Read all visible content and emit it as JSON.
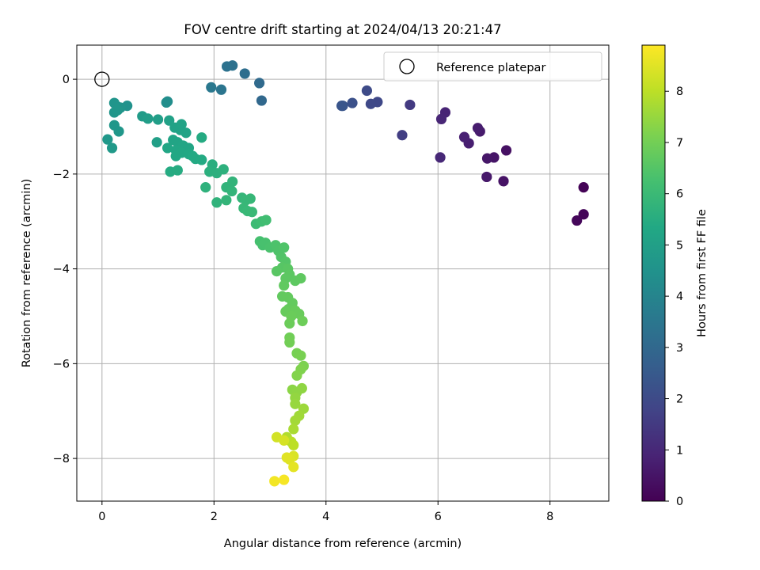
{
  "chart_data": {
    "type": "scatter",
    "title": "FOV centre drift starting at 2024/04/13 20:21:47",
    "xlabel": "Angular distance from reference (arcmin)",
    "ylabel": "Rotation from reference (arcmin)",
    "xlim": [
      -0.45,
      9.05
    ],
    "ylim": [
      -8.9,
      0.72
    ],
    "xticks": [
      "0",
      "2",
      "4",
      "6",
      "8"
    ],
    "yticks": [
      "0",
      "−2",
      "−4",
      "−6",
      "−8"
    ],
    "grid": true,
    "legend": {
      "position": "top-right",
      "entries": [
        "Reference platepar"
      ]
    },
    "reference_point": {
      "x": 0,
      "y": 0
    },
    "colorbar": {
      "label": "Hours from first FF file",
      "colormap": "viridis",
      "range": [
        0,
        8.9
      ],
      "ticks": [
        "0",
        "1",
        "2",
        "3",
        "4",
        "5",
        "6",
        "7",
        "8"
      ]
    },
    "points": [
      {
        "x": 8.6,
        "y": -2.28,
        "h": 0.05
      },
      {
        "x": 8.6,
        "y": -2.85,
        "h": 0.1
      },
      {
        "x": 8.48,
        "y": -2.98,
        "h": 0.15
      },
      {
        "x": 7.22,
        "y": -1.5,
        "h": 0.4
      },
      {
        "x": 7.17,
        "y": -2.15,
        "h": 0.45
      },
      {
        "x": 7.0,
        "y": -1.65,
        "h": 0.5
      },
      {
        "x": 6.88,
        "y": -1.67,
        "h": 0.55
      },
      {
        "x": 6.87,
        "y": -2.06,
        "h": 0.6
      },
      {
        "x": 6.75,
        "y": -1.1,
        "h": 0.65
      },
      {
        "x": 6.71,
        "y": -1.03,
        "h": 0.7
      },
      {
        "x": 6.55,
        "y": -1.35,
        "h": 0.75
      },
      {
        "x": 6.47,
        "y": -1.22,
        "h": 0.8
      },
      {
        "x": 6.13,
        "y": -0.7,
        "h": 0.9
      },
      {
        "x": 6.06,
        "y": -0.84,
        "h": 0.95
      },
      {
        "x": 6.04,
        "y": -1.65,
        "h": 1.0
      },
      {
        "x": 5.5,
        "y": -0.54,
        "h": 1.5
      },
      {
        "x": 5.36,
        "y": -1.18,
        "h": 1.6
      },
      {
        "x": 4.92,
        "y": -0.48,
        "h": 1.9
      },
      {
        "x": 4.8,
        "y": -0.52,
        "h": 1.95
      },
      {
        "x": 4.73,
        "y": -0.24,
        "h": 2.0
      },
      {
        "x": 4.47,
        "y": -0.5,
        "h": 2.2
      },
      {
        "x": 4.3,
        "y": -0.56,
        "h": 2.3
      },
      {
        "x": 4.28,
        "y": -0.56,
        "h": 2.35
      },
      {
        "x": 2.85,
        "y": -0.45,
        "h": 3.0
      },
      {
        "x": 2.81,
        "y": -0.08,
        "h": 3.05
      },
      {
        "x": 2.55,
        "y": 0.12,
        "h": 3.2
      },
      {
        "x": 2.33,
        "y": 0.29,
        "h": 3.3
      },
      {
        "x": 2.23,
        "y": 0.27,
        "h": 3.35
      },
      {
        "x": 2.13,
        "y": -0.22,
        "h": 3.45
      },
      {
        "x": 1.95,
        "y": -0.17,
        "h": 3.55
      },
      {
        "x": 1.17,
        "y": -0.47,
        "h": 4.3
      },
      {
        "x": 1.15,
        "y": -0.49,
        "h": 4.35
      },
      {
        "x": 0.45,
        "y": -0.56,
        "h": 4.5
      },
      {
        "x": 0.33,
        "y": -0.6,
        "h": 4.55
      },
      {
        "x": 0.28,
        "y": -0.58,
        "h": 4.58
      },
      {
        "x": 0.22,
        "y": -0.5,
        "h": 4.6
      },
      {
        "x": 0.22,
        "y": -0.7,
        "h": 4.62
      },
      {
        "x": 0.28,
        "y": -0.65,
        "h": 4.64
      },
      {
        "x": 0.22,
        "y": -0.97,
        "h": 4.68
      },
      {
        "x": 0.3,
        "y": -1.1,
        "h": 4.7
      },
      {
        "x": 0.1,
        "y": -1.27,
        "h": 4.72
      },
      {
        "x": 0.18,
        "y": -1.45,
        "h": 4.75
      },
      {
        "x": 0.72,
        "y": -0.78,
        "h": 4.85
      },
      {
        "x": 0.82,
        "y": -0.83,
        "h": 4.9
      },
      {
        "x": 1.0,
        "y": -0.85,
        "h": 4.95
      },
      {
        "x": 0.98,
        "y": -1.33,
        "h": 5.0
      },
      {
        "x": 1.2,
        "y": -0.87,
        "h": 5.05
      },
      {
        "x": 1.3,
        "y": -1.02,
        "h": 5.1
      },
      {
        "x": 1.4,
        "y": -1.07,
        "h": 5.12
      },
      {
        "x": 1.42,
        "y": -0.95,
        "h": 5.14
      },
      {
        "x": 1.5,
        "y": -1.13,
        "h": 5.16
      },
      {
        "x": 1.27,
        "y": -1.28,
        "h": 5.18
      },
      {
        "x": 1.35,
        "y": -1.33,
        "h": 5.2
      },
      {
        "x": 1.45,
        "y": -1.4,
        "h": 5.22
      },
      {
        "x": 1.55,
        "y": -1.45,
        "h": 5.24
      },
      {
        "x": 1.17,
        "y": -1.45,
        "h": 5.26
      },
      {
        "x": 1.32,
        "y": -1.5,
        "h": 5.28
      },
      {
        "x": 1.42,
        "y": -1.55,
        "h": 5.3
      },
      {
        "x": 1.32,
        "y": -1.62,
        "h": 5.32
      },
      {
        "x": 1.55,
        "y": -1.58,
        "h": 5.34
      },
      {
        "x": 1.62,
        "y": -1.62,
        "h": 5.36
      },
      {
        "x": 1.67,
        "y": -1.68,
        "h": 5.38
      },
      {
        "x": 1.78,
        "y": -1.7,
        "h": 5.4
      },
      {
        "x": 1.78,
        "y": -1.23,
        "h": 5.42
      },
      {
        "x": 1.22,
        "y": -1.95,
        "h": 5.44
      },
      {
        "x": 1.35,
        "y": -1.92,
        "h": 5.46
      },
      {
        "x": 1.97,
        "y": -1.8,
        "h": 5.55
      },
      {
        "x": 1.92,
        "y": -1.95,
        "h": 5.6
      },
      {
        "x": 2.05,
        "y": -1.98,
        "h": 5.62
      },
      {
        "x": 2.17,
        "y": -1.9,
        "h": 5.65
      },
      {
        "x": 1.85,
        "y": -2.28,
        "h": 5.7
      },
      {
        "x": 2.05,
        "y": -2.6,
        "h": 5.72
      },
      {
        "x": 2.22,
        "y": -2.28,
        "h": 5.75
      },
      {
        "x": 2.33,
        "y": -2.16,
        "h": 5.78
      },
      {
        "x": 2.32,
        "y": -2.36,
        "h": 5.8
      },
      {
        "x": 2.22,
        "y": -2.55,
        "h": 5.82
      },
      {
        "x": 2.5,
        "y": -2.5,
        "h": 5.85
      },
      {
        "x": 2.57,
        "y": -2.55,
        "h": 5.88
      },
      {
        "x": 2.65,
        "y": -2.52,
        "h": 5.9
      },
      {
        "x": 2.53,
        "y": -2.72,
        "h": 5.92
      },
      {
        "x": 2.6,
        "y": -2.78,
        "h": 5.94
      },
      {
        "x": 2.68,
        "y": -2.8,
        "h": 5.96
      },
      {
        "x": 2.75,
        "y": -3.05,
        "h": 6.05
      },
      {
        "x": 2.85,
        "y": -3.0,
        "h": 6.1
      },
      {
        "x": 2.93,
        "y": -2.97,
        "h": 6.15
      },
      {
        "x": 2.82,
        "y": -3.42,
        "h": 6.25
      },
      {
        "x": 2.87,
        "y": -3.5,
        "h": 6.28
      },
      {
        "x": 2.92,
        "y": -3.45,
        "h": 6.3
      },
      {
        "x": 3.0,
        "y": -3.55,
        "h": 6.33
      },
      {
        "x": 3.1,
        "y": -3.5,
        "h": 6.36
      },
      {
        "x": 3.15,
        "y": -3.62,
        "h": 6.4
      },
      {
        "x": 3.25,
        "y": -3.55,
        "h": 6.42
      },
      {
        "x": 3.2,
        "y": -3.75,
        "h": 6.45
      },
      {
        "x": 3.28,
        "y": -3.85,
        "h": 6.5
      },
      {
        "x": 3.22,
        "y": -3.97,
        "h": 6.55
      },
      {
        "x": 3.12,
        "y": -4.05,
        "h": 6.58
      },
      {
        "x": 3.32,
        "y": -4.0,
        "h": 6.6
      },
      {
        "x": 3.35,
        "y": -4.12,
        "h": 6.62
      },
      {
        "x": 3.28,
        "y": -4.2,
        "h": 6.64
      },
      {
        "x": 3.45,
        "y": -4.25,
        "h": 6.66
      },
      {
        "x": 3.55,
        "y": -4.2,
        "h": 6.68
      },
      {
        "x": 3.25,
        "y": -4.35,
        "h": 6.7
      },
      {
        "x": 3.22,
        "y": -4.58,
        "h": 6.72
      },
      {
        "x": 3.32,
        "y": -4.6,
        "h": 6.74
      },
      {
        "x": 3.4,
        "y": -4.72,
        "h": 6.76
      },
      {
        "x": 3.33,
        "y": -4.85,
        "h": 6.78
      },
      {
        "x": 3.28,
        "y": -4.9,
        "h": 6.8
      },
      {
        "x": 3.45,
        "y": -4.88,
        "h": 6.82
      },
      {
        "x": 3.52,
        "y": -4.95,
        "h": 6.84
      },
      {
        "x": 3.38,
        "y": -5.0,
        "h": 6.86
      },
      {
        "x": 3.35,
        "y": -5.15,
        "h": 6.88
      },
      {
        "x": 3.58,
        "y": -5.1,
        "h": 6.9
      },
      {
        "x": 3.35,
        "y": -5.45,
        "h": 6.95
      },
      {
        "x": 3.35,
        "y": -5.55,
        "h": 6.98
      },
      {
        "x": 3.48,
        "y": -5.78,
        "h": 7.05
      },
      {
        "x": 3.55,
        "y": -5.83,
        "h": 7.08
      },
      {
        "x": 3.6,
        "y": -6.05,
        "h": 7.15
      },
      {
        "x": 3.55,
        "y": -6.12,
        "h": 7.18
      },
      {
        "x": 3.48,
        "y": -6.25,
        "h": 7.22
      },
      {
        "x": 3.4,
        "y": -6.55,
        "h": 7.35
      },
      {
        "x": 3.48,
        "y": -6.6,
        "h": 7.38
      },
      {
        "x": 3.57,
        "y": -6.52,
        "h": 7.4
      },
      {
        "x": 3.45,
        "y": -6.72,
        "h": 7.45
      },
      {
        "x": 3.45,
        "y": -6.85,
        "h": 7.5
      },
      {
        "x": 3.6,
        "y": -6.95,
        "h": 7.58
      },
      {
        "x": 3.52,
        "y": -7.1,
        "h": 7.62
      },
      {
        "x": 3.45,
        "y": -7.2,
        "h": 7.66
      },
      {
        "x": 3.42,
        "y": -7.38,
        "h": 7.75
      },
      {
        "x": 3.3,
        "y": -7.55,
        "h": 7.85
      },
      {
        "x": 3.38,
        "y": -7.65,
        "h": 7.95
      },
      {
        "x": 3.42,
        "y": -7.72,
        "h": 8.0
      },
      {
        "x": 3.12,
        "y": -7.55,
        "h": 8.3
      },
      {
        "x": 3.25,
        "y": -7.62,
        "h": 8.35
      },
      {
        "x": 3.42,
        "y": -7.95,
        "h": 8.4
      },
      {
        "x": 3.35,
        "y": -8.02,
        "h": 8.45
      },
      {
        "x": 3.3,
        "y": -7.98,
        "h": 8.5
      },
      {
        "x": 3.42,
        "y": -8.18,
        "h": 8.55
      },
      {
        "x": 3.08,
        "y": -8.48,
        "h": 8.75
      },
      {
        "x": 3.25,
        "y": -8.45,
        "h": 8.8
      }
    ]
  }
}
